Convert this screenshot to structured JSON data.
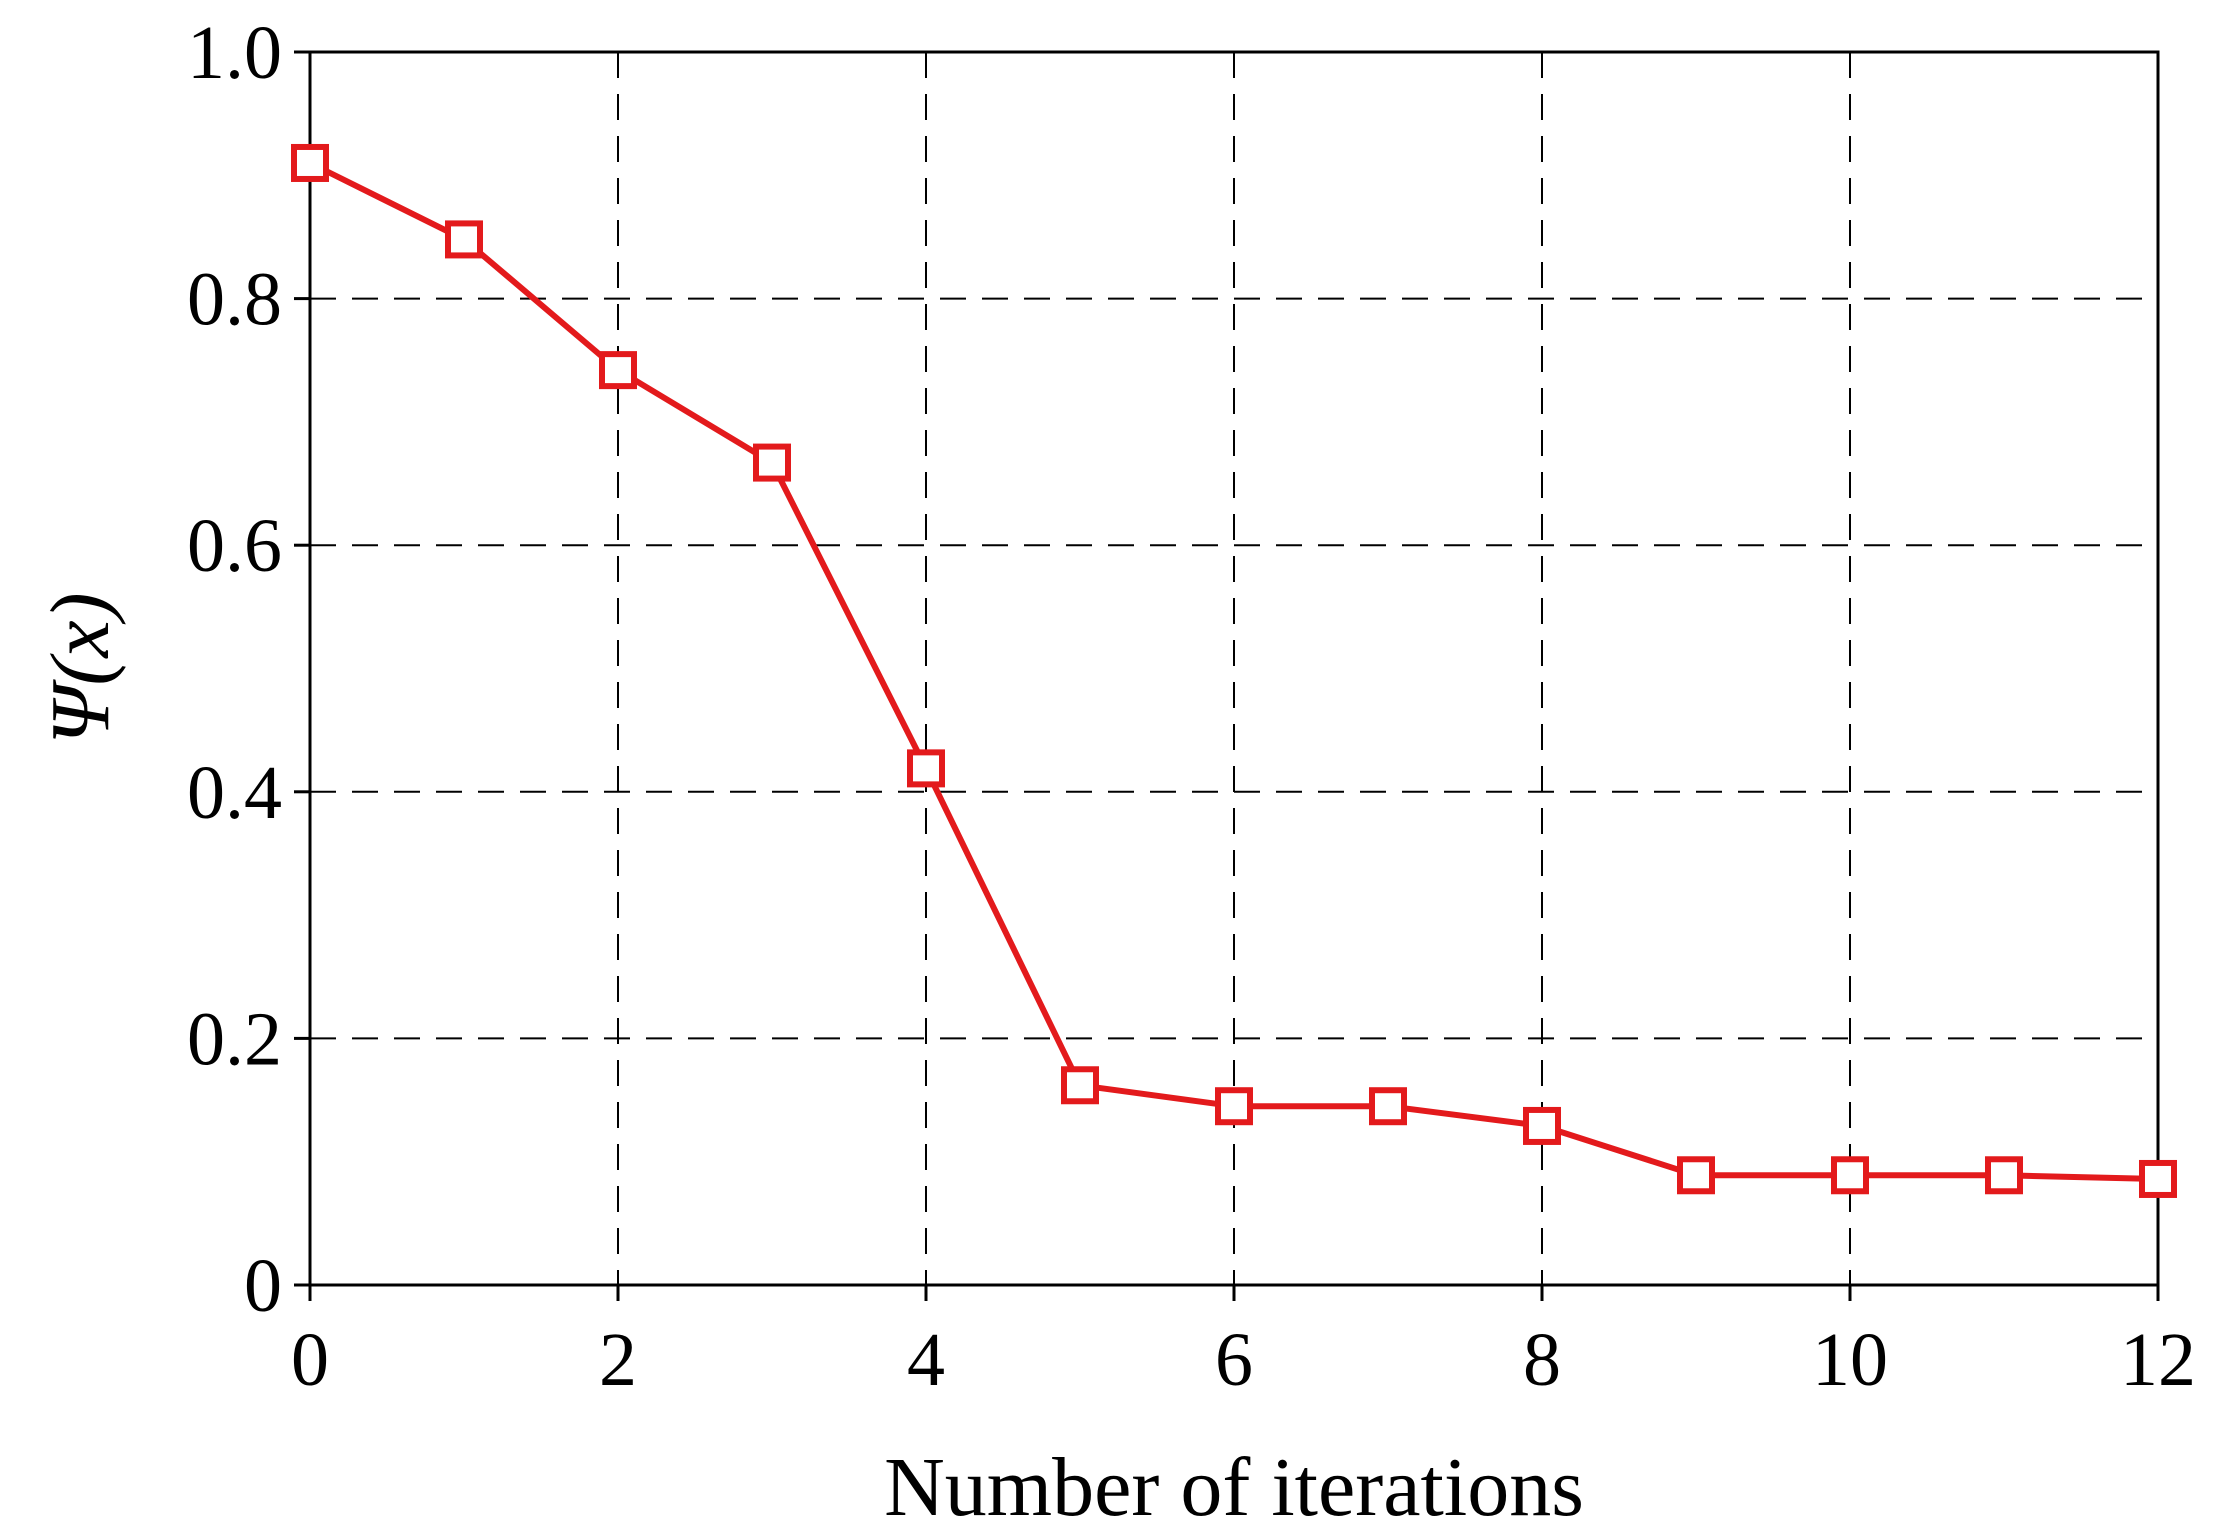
{
  "chart_data": {
    "type": "line",
    "title": "",
    "xlabel": "Number of iterations",
    "ylabel": "Ψ(x)",
    "xlim": [
      0,
      12
    ],
    "ylim": [
      0,
      1.0
    ],
    "xticks": [
      0,
      2,
      4,
      6,
      8,
      10,
      12
    ],
    "yticks": [
      0,
      0.2,
      0.4,
      0.6,
      0.8,
      1.0
    ],
    "xtick_labels": [
      "0",
      "2",
      "4",
      "6",
      "8",
      "10",
      "12"
    ],
    "ytick_labels": [
      "0",
      "0.2",
      "0.4",
      "0.6",
      "0.8",
      "1.0"
    ],
    "grid": true,
    "grid_style": "dashed",
    "legend": "none",
    "series": [
      {
        "color": "#e31a1c",
        "marker": "square-open",
        "x": [
          0,
          1,
          2,
          3,
          4,
          5,
          6,
          7,
          8,
          9,
          10,
          11,
          12
        ],
        "y": [
          0.91,
          0.848,
          0.742,
          0.667,
          0.419,
          0.162,
          0.145,
          0.145,
          0.129,
          0.089,
          0.089,
          0.089,
          0.086
        ]
      }
    ]
  }
}
